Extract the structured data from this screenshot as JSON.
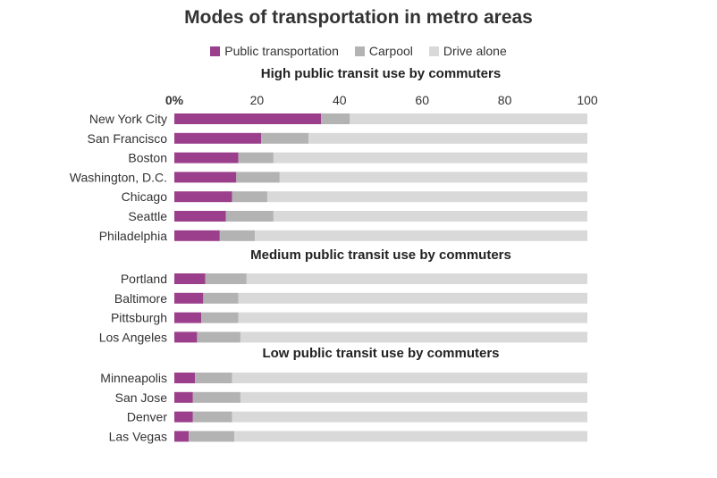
{
  "chart_data": {
    "type": "bar",
    "orientation": "horizontal",
    "stacked": true,
    "title": "Modes of transportation in metro areas",
    "xlim": [
      0,
      100
    ],
    "x_ticks": [
      "0%",
      "20",
      "40",
      "60",
      "80",
      "100"
    ],
    "legend": [
      {
        "name": "Public transportation",
        "color": "#9b3f8c"
      },
      {
        "name": "Carpool",
        "color": "#b3b3b3"
      },
      {
        "name": "Drive alone",
        "color": "#d9d9d9"
      }
    ],
    "groups": [
      {
        "title": "High public transit use by commuters",
        "rows": [
          {
            "city": "New York City",
            "public": 35.5,
            "carpool": 7,
            "alone": 57.5
          },
          {
            "city": "San Francisco",
            "public": 21,
            "carpool": 11.5,
            "alone": 67.5
          },
          {
            "city": "Boston",
            "public": 15.5,
            "carpool": 8.5,
            "alone": 76
          },
          {
            "city": "Washington, D.C.",
            "public": 15,
            "carpool": 10.5,
            "alone": 74.5
          },
          {
            "city": "Chicago",
            "public": 14,
            "carpool": 8.5,
            "alone": 77.5
          },
          {
            "city": "Seattle",
            "public": 12.5,
            "carpool": 11.5,
            "alone": 76
          },
          {
            "city": "Philadelphia",
            "public": 11,
            "carpool": 8.5,
            "alone": 80.5
          }
        ]
      },
      {
        "title": "Medium public transit use by commuters",
        "rows": [
          {
            "city": "Portland",
            "public": 7.5,
            "carpool": 10,
            "alone": 82.5
          },
          {
            "city": "Baltimore",
            "public": 7,
            "carpool": 8.5,
            "alone": 84.5
          },
          {
            "city": "Pittsburgh",
            "public": 6.5,
            "carpool": 9,
            "alone": 84.5
          },
          {
            "city": "Los Angeles",
            "public": 5.5,
            "carpool": 10.5,
            "alone": 84
          }
        ]
      },
      {
        "title": "Low public transit use by commuters",
        "rows": [
          {
            "city": "Minneapolis",
            "public": 5,
            "carpool": 9,
            "alone": 86
          },
          {
            "city": "San Jose",
            "public": 4.5,
            "carpool": 11.5,
            "alone": 84
          },
          {
            "city": "Denver",
            "public": 4.5,
            "carpool": 9.5,
            "alone": 86
          },
          {
            "city": "Las Vegas",
            "public": 3.5,
            "carpool": 11,
            "alone": 85.5
          }
        ]
      }
    ]
  }
}
